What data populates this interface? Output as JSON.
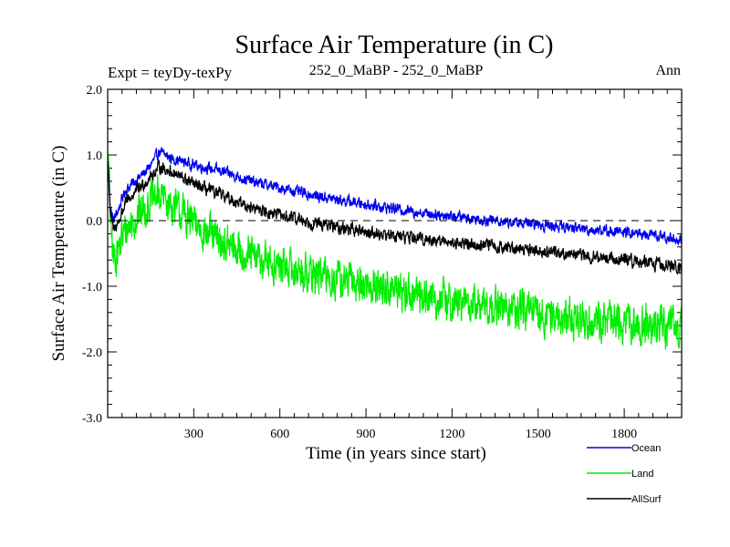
{
  "chart_data": {
    "type": "line",
    "title": "Surface Air Temperature (in C)",
    "subtitle_left": "Expt = teyDy-texPy",
    "subtitle_center": "252_0_MaBP - 252_0_MaBP",
    "subtitle_right": "Ann",
    "xlabel": "Time (in years since start)",
    "ylabel": "Surface Air Temperature (in C)",
    "xlim": [
      0,
      2000
    ],
    "ylim": [
      -3.0,
      2.0
    ],
    "x_ticks": [
      300,
      600,
      900,
      1200,
      1500,
      1800
    ],
    "x_tick_labels": [
      "300",
      "600",
      "900",
      "1200",
      "1500",
      "1800"
    ],
    "y_ticks": [
      -3.0,
      -2.0,
      -1.0,
      0.0,
      1.0,
      2.0
    ],
    "y_tick_labels": [
      "-3.0",
      "-2.0",
      "-1.0",
      "0.0",
      "1.0",
      "2.0"
    ],
    "zero_line": true,
    "grid": false,
    "legend_position": "bottom-right",
    "series": [
      {
        "name": "Ocean",
        "color": "#0000ee",
        "noise_amplitude": 0.08,
        "x": [
          0,
          10,
          20,
          40,
          60,
          100,
          140,
          180,
          220,
          300,
          400,
          500,
          600,
          700,
          800,
          900,
          1000,
          1100,
          1200,
          1300,
          1400,
          1500,
          1600,
          1700,
          1800,
          1900,
          2000
        ],
        "values": [
          0.9,
          0.2,
          0.0,
          0.2,
          0.45,
          0.62,
          0.78,
          1.05,
          0.95,
          0.85,
          0.75,
          0.6,
          0.5,
          0.4,
          0.32,
          0.25,
          0.18,
          0.12,
          0.07,
          0.02,
          -0.02,
          -0.06,
          -0.1,
          -0.14,
          -0.18,
          -0.22,
          -0.3
        ]
      },
      {
        "name": "Land",
        "color": "#00ee00",
        "noise_amplitude": 0.28,
        "x": [
          0,
          10,
          20,
          40,
          60,
          100,
          140,
          180,
          220,
          300,
          400,
          500,
          600,
          700,
          800,
          900,
          1000,
          1100,
          1200,
          1300,
          1400,
          1500,
          1600,
          1700,
          1800,
          1900,
          2000
        ],
        "values": [
          1.2,
          0.0,
          -0.6,
          -0.4,
          -0.15,
          0.05,
          0.25,
          0.4,
          0.25,
          -0.05,
          -0.35,
          -0.55,
          -0.7,
          -0.8,
          -0.9,
          -0.98,
          -1.05,
          -1.15,
          -1.25,
          -1.3,
          -1.35,
          -1.42,
          -1.48,
          -1.52,
          -1.58,
          -1.6,
          -1.65
        ]
      },
      {
        "name": "AllSurf",
        "color": "#000000",
        "noise_amplitude": 0.09,
        "x": [
          0,
          10,
          20,
          40,
          60,
          100,
          140,
          180,
          220,
          300,
          400,
          500,
          600,
          700,
          800,
          900,
          1000,
          1100,
          1200,
          1300,
          1400,
          1500,
          1600,
          1700,
          1800,
          1900,
          2000
        ],
        "values": [
          1.0,
          0.1,
          -0.15,
          0.0,
          0.25,
          0.45,
          0.62,
          0.82,
          0.75,
          0.55,
          0.38,
          0.2,
          0.08,
          -0.02,
          -0.1,
          -0.17,
          -0.23,
          -0.28,
          -0.33,
          -0.37,
          -0.41,
          -0.45,
          -0.5,
          -0.55,
          -0.6,
          -0.65,
          -0.72
        ]
      }
    ]
  }
}
